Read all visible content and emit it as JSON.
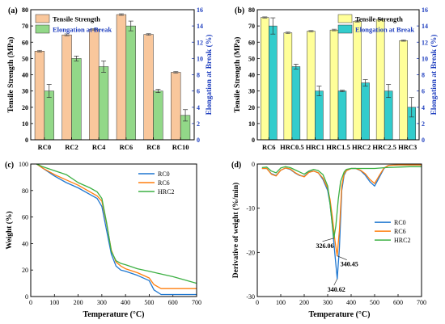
{
  "chart_data": [
    {
      "panel": "(a)",
      "type": "bar",
      "categories": [
        "RC0",
        "RC2",
        "RC4",
        "RC6",
        "RC8",
        "RC10"
      ],
      "series": [
        {
          "name": "Tensile Strength",
          "axis": "left",
          "color": "#f9c79c",
          "values": [
            54.5,
            64.5,
            67.8,
            77.0,
            64.8,
            41.5
          ],
          "errors": [
            0.5,
            0.6,
            0.6,
            0.5,
            0.5,
            0.5
          ]
        },
        {
          "name": "Elongation at Break",
          "axis": "right",
          "color": "#92d888",
          "values": [
            6.0,
            10.0,
            9.0,
            14.0,
            6.0,
            3.0
          ],
          "errors": [
            0.8,
            0.3,
            0.7,
            0.6,
            0.2,
            0.7
          ]
        }
      ],
      "ylabel": "Tensile Strength (MPa)",
      "ylim": [
        0,
        80
      ],
      "yticks": [
        0,
        10,
        20,
        30,
        40,
        50,
        60,
        70,
        80
      ],
      "y2label": "Elongation at Break (%)",
      "y2lim": [
        0,
        16
      ],
      "y2ticks": [
        0,
        2,
        4,
        6,
        8,
        10,
        12,
        14,
        16
      ],
      "legend": "top-left"
    },
    {
      "panel": "(b)",
      "type": "bar",
      "categories": [
        "RC6",
        "HRC0.5",
        "HRC1",
        "HRC1.5",
        "HRC2",
        "HRC2.5",
        "HRC3"
      ],
      "series": [
        {
          "name": "Tensile Strength",
          "axis": "left",
          "color": "#ffff99",
          "values": [
            75.2,
            65.8,
            66.8,
            67.5,
            72.8,
            74.0,
            61.0
          ],
          "errors": [
            0.4,
            0.5,
            0.4,
            0.5,
            0.4,
            0.4,
            0.4
          ]
        },
        {
          "name": "Elongation at Break",
          "axis": "right",
          "color": "#33cccc",
          "values": [
            14.0,
            9.0,
            6.0,
            6.0,
            7.0,
            6.0,
            4.0
          ],
          "errors": [
            1.0,
            0.3,
            0.6,
            0.1,
            0.4,
            0.8,
            1.2
          ]
        }
      ],
      "ylabel": "Tensile Strength (MPa)",
      "ylim": [
        0,
        80
      ],
      "yticks": [
        0,
        10,
        20,
        30,
        40,
        50,
        60,
        70,
        80
      ],
      "y2label": "Elongation at Break (%)",
      "y2lim": [
        0,
        16
      ],
      "y2ticks": [
        0,
        2,
        4,
        6,
        8,
        10,
        12,
        14,
        16
      ],
      "legend": "top-right"
    },
    {
      "panel": "(c)",
      "type": "line",
      "xlabel": "Temperature (°C)",
      "ylabel": "Weight (%)",
      "xlim": [
        0,
        700
      ],
      "ylim": [
        0,
        100
      ],
      "xticks": [
        0,
        100,
        200,
        300,
        400,
        500,
        600,
        700
      ],
      "yticks": [
        0,
        20,
        40,
        60,
        80,
        100
      ],
      "legend": "top-right",
      "series": [
        {
          "name": "RC0",
          "color": "#1f77d0",
          "x": [
            25,
            50,
            100,
            150,
            200,
            250,
            280,
            300,
            320,
            340,
            360,
            380,
            400,
            450,
            500,
            520,
            550,
            600,
            650,
            700
          ],
          "y": [
            100,
            97,
            91,
            86,
            82,
            77,
            74,
            68,
            50,
            32,
            23,
            20,
            19,
            16,
            12,
            5,
            1.5,
            1.5,
            1.5,
            1.5
          ]
        },
        {
          "name": "RC6",
          "color": "#ff7f0e",
          "x": [
            25,
            50,
            100,
            150,
            200,
            250,
            280,
            300,
            320,
            340,
            360,
            380,
            400,
            450,
            500,
            520,
            550,
            600,
            650,
            700
          ],
          "y": [
            100,
            97,
            92,
            88,
            84,
            79,
            76,
            72,
            55,
            35,
            26,
            23,
            21,
            18,
            14,
            9,
            6,
            6,
            6,
            6
          ]
        },
        {
          "name": "HRC2",
          "color": "#3cb043",
          "x": [
            25,
            50,
            100,
            150,
            200,
            250,
            280,
            300,
            320,
            340,
            360,
            380,
            400,
            450,
            500,
            550,
            600,
            650,
            700
          ],
          "y": [
            100,
            98,
            95,
            92,
            86,
            82,
            79,
            74,
            56,
            34,
            27,
            25,
            24,
            21,
            19,
            17,
            15,
            12.5,
            10
          ]
        }
      ]
    },
    {
      "panel": "(d)",
      "type": "line",
      "xlabel": "Temperature (°C)",
      "ylabel": "Derivative of weight (%/min)",
      "xlim": [
        0,
        700
      ],
      "ylim": [
        -30,
        0
      ],
      "xticks": [
        0,
        100,
        200,
        300,
        400,
        500,
        600,
        700
      ],
      "yticks": [
        -30,
        -20,
        -10,
        0
      ],
      "legend": "middle-right",
      "annotations": [
        {
          "text": "326.06",
          "x": 326.06,
          "y": -16.8
        },
        {
          "text": "340.45",
          "x": 340.45,
          "y": -20.8
        },
        {
          "text": "340.62",
          "x": 340.62,
          "y": -26.0
        }
      ],
      "series": [
        {
          "name": "RC0",
          "color": "#1f77d0",
          "x": [
            20,
            40,
            60,
            80,
            100,
            120,
            140,
            160,
            180,
            200,
            220,
            240,
            260,
            280,
            300,
            310,
            320,
            330,
            340.62,
            350,
            360,
            370,
            380,
            400,
            420,
            440,
            460,
            480,
            500,
            520,
            540,
            560,
            600,
            650,
            700
          ],
          "y": [
            -1.0,
            -1.0,
            -2.2,
            -2.6,
            -1.4,
            -0.9,
            -1.2,
            -2.0,
            -2.6,
            -2.8,
            -1.8,
            -1.6,
            -2.0,
            -3.5,
            -6.0,
            -9.0,
            -14.0,
            -20.0,
            -26.0,
            -19.0,
            -6.0,
            -2.5,
            -1.5,
            -1.0,
            -1.0,
            -1.5,
            -2.5,
            -4.0,
            -5.0,
            -3.0,
            -1.0,
            -0.3,
            -0.2,
            -0.2,
            -0.2
          ]
        },
        {
          "name": "RC6",
          "color": "#ff7f0e",
          "x": [
            20,
            40,
            60,
            80,
            100,
            120,
            140,
            160,
            180,
            200,
            220,
            240,
            260,
            280,
            300,
            310,
            320,
            330,
            340.45,
            350,
            360,
            370,
            380,
            400,
            420,
            440,
            460,
            480,
            500,
            520,
            540,
            560,
            600,
            650,
            700
          ],
          "y": [
            -1.0,
            -1.0,
            -2.3,
            -2.7,
            -1.4,
            -0.9,
            -1.1,
            -1.9,
            -2.5,
            -2.9,
            -1.9,
            -1.6,
            -2.0,
            -3.2,
            -5.5,
            -8.0,
            -12.0,
            -17.0,
            -20.8,
            -15.0,
            -5.0,
            -2.2,
            -1.5,
            -1.0,
            -1.0,
            -1.4,
            -2.2,
            -3.5,
            -4.4,
            -2.6,
            -0.9,
            -0.3,
            -0.2,
            -0.2,
            -0.2
          ]
        },
        {
          "name": "HRC2",
          "color": "#3cb043",
          "x": [
            20,
            40,
            60,
            80,
            100,
            120,
            140,
            160,
            180,
            200,
            220,
            240,
            260,
            280,
            300,
            310,
            326.06,
            335,
            345,
            355,
            370,
            380,
            400,
            450,
            500,
            550,
            600,
            650,
            700
          ],
          "y": [
            -0.8,
            -0.7,
            -1.6,
            -2.0,
            -0.9,
            -0.6,
            -0.8,
            -1.3,
            -1.8,
            -2.3,
            -1.6,
            -1.2,
            -1.5,
            -2.4,
            -5.0,
            -9.0,
            -16.8,
            -14.0,
            -8.0,
            -4.0,
            -1.8,
            -1.2,
            -1.0,
            -1.0,
            -1.0,
            -0.8,
            -0.7,
            -0.6,
            -0.6
          ]
        }
      ]
    }
  ]
}
